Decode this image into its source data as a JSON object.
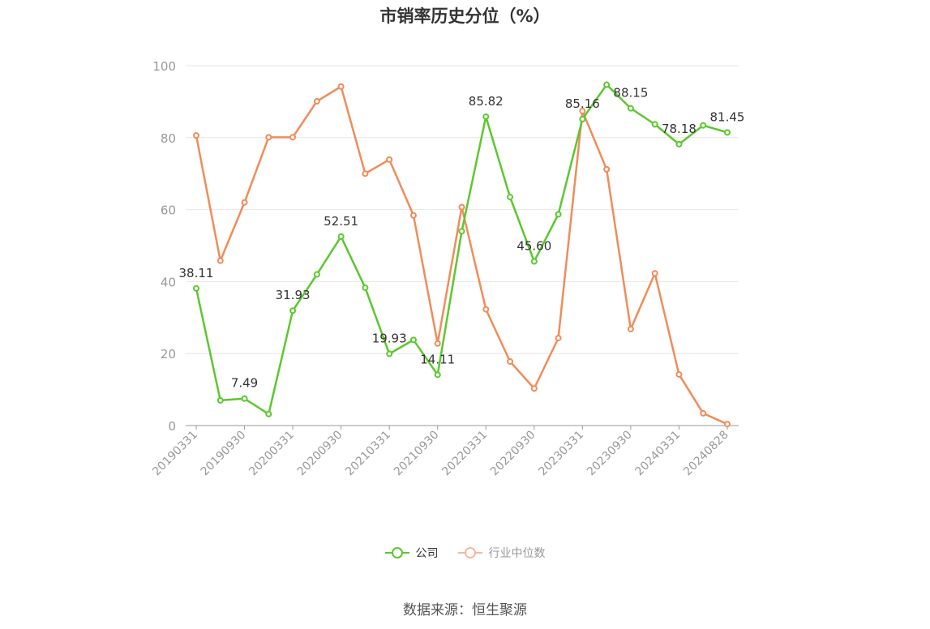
{
  "title": "市销率历史分位（%）",
  "source": "数据来源：恒生聚源",
  "colors": {
    "company": "#5cc72f",
    "industry": "#f08c5a",
    "industry_legend": "#f5b9a0",
    "axis": "#999999",
    "grid": "#e6e6e6"
  },
  "chart_data": {
    "type": "line",
    "x_tick_labels": [
      "20190331",
      "20190930",
      "20200331",
      "20200930",
      "20210331",
      "20210930",
      "20220331",
      "20220930",
      "20230331",
      "20230930",
      "20240331",
      "20240828"
    ],
    "y_ticks": [
      0,
      20,
      40,
      60,
      80,
      100
    ],
    "ylim": [
      0,
      100
    ],
    "grid": true,
    "legend_position": "bottom",
    "series": [
      {
        "name": "公司",
        "key": "company",
        "values": [
          38.11,
          7.0,
          7.49,
          3.2,
          31.93,
          42.0,
          52.51,
          38.3,
          19.93,
          23.8,
          14.11,
          54.0,
          85.82,
          63.5,
          45.6,
          58.7,
          85.16,
          94.7,
          88.15,
          83.7,
          78.18,
          83.4,
          81.45
        ],
        "labels": {
          "0": "38.11",
          "2": "7.49",
          "4": "31.93",
          "6": "52.51",
          "8": "19.93",
          "10": "14.11",
          "12": "85.82",
          "14": "45.60",
          "16": "85.16",
          "18": "88.15",
          "20": "78.18",
          "22": "81.45"
        }
      },
      {
        "name": "行业中位数",
        "key": "industry",
        "values": [
          80.6,
          45.8,
          62.0,
          80.1,
          80.1,
          90.1,
          94.2,
          70.0,
          73.9,
          58.4,
          22.8,
          60.7,
          32.3,
          17.8,
          10.3,
          24.3,
          87.4,
          71.2,
          26.8,
          42.3,
          14.2,
          3.4,
          0.4
        ]
      }
    ]
  }
}
